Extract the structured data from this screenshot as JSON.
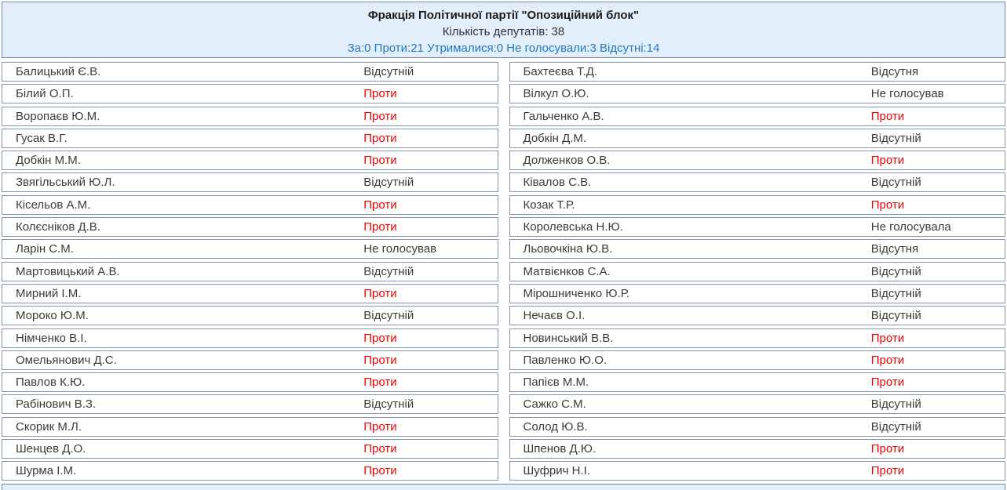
{
  "header": {
    "faction_title": "Фракція Політичної партії \"Опозиційний блок\"",
    "deputies_count": "Кількість депутатів: 38",
    "vote_summary": "За:0 Проти:21 Утрималися:0 Не голосували:3 Відсутні:14"
  },
  "colors": {
    "against": "#f00000",
    "summary_text": "#2079c3",
    "header_background": "#e3eefb",
    "box_border": "#8094ad"
  },
  "table": {
    "left": [
      {
        "name": "Балицький Є.В.",
        "vote": "Відсутній",
        "status": "absent"
      },
      {
        "name": "Білий О.П.",
        "vote": "Проти",
        "status": "against"
      },
      {
        "name": "Воропаєв Ю.М.",
        "vote": "Проти",
        "status": "against"
      },
      {
        "name": "Гусак В.Г.",
        "vote": "Проти",
        "status": "against"
      },
      {
        "name": "Добкін М.М.",
        "vote": "Проти",
        "status": "against"
      },
      {
        "name": "Звягільський Ю.Л.",
        "vote": "Відсутній",
        "status": "absent"
      },
      {
        "name": "Кісельов А.М.",
        "vote": "Проти",
        "status": "against"
      },
      {
        "name": "Колєсніков Д.В.",
        "vote": "Проти",
        "status": "against"
      },
      {
        "name": "Ларін С.М.",
        "vote": "Не голосував",
        "status": "not_voted"
      },
      {
        "name": "Мартовицький А.В.",
        "vote": "Відсутній",
        "status": "absent"
      },
      {
        "name": "Мирний І.М.",
        "vote": "Проти",
        "status": "against"
      },
      {
        "name": "Мороко Ю.М.",
        "vote": "Відсутній",
        "status": "absent"
      },
      {
        "name": "Німченко В.І.",
        "vote": "Проти",
        "status": "against"
      },
      {
        "name": "Омельянович Д.С.",
        "vote": "Проти",
        "status": "against"
      },
      {
        "name": "Павлов К.Ю.",
        "vote": "Проти",
        "status": "against"
      },
      {
        "name": "Рабінович В.З.",
        "vote": "Відсутній",
        "status": "absent"
      },
      {
        "name": "Скорик М.Л.",
        "vote": "Проти",
        "status": "against"
      },
      {
        "name": "Шенцев Д.О.",
        "vote": "Проти",
        "status": "against"
      },
      {
        "name": "Шурма І.М.",
        "vote": "Проти",
        "status": "against"
      }
    ],
    "right": [
      {
        "name": "Бахтеєва Т.Д.",
        "vote": "Відсутня",
        "status": "absent"
      },
      {
        "name": "Вілкул О.Ю.",
        "vote": "Не голосував",
        "status": "not_voted"
      },
      {
        "name": "Гальченко А.В.",
        "vote": "Проти",
        "status": "against"
      },
      {
        "name": "Добкін Д.М.",
        "vote": "Відсутній",
        "status": "absent"
      },
      {
        "name": "Долженков О.В.",
        "vote": "Проти",
        "status": "against"
      },
      {
        "name": "Ківалов С.В.",
        "vote": "Відсутній",
        "status": "absent"
      },
      {
        "name": "Козак Т.Р.",
        "vote": "Проти",
        "status": "against"
      },
      {
        "name": "Королевська Н.Ю.",
        "vote": "Не голосувала",
        "status": "not_voted"
      },
      {
        "name": "Льовочкіна Ю.В.",
        "vote": "Відсутня",
        "status": "absent"
      },
      {
        "name": "Матвієнков С.А.",
        "vote": "Відсутній",
        "status": "absent"
      },
      {
        "name": "Мірошниченко Ю.Р.",
        "vote": "Відсутній",
        "status": "absent"
      },
      {
        "name": "Нечаєв О.І.",
        "vote": "Відсутній",
        "status": "absent"
      },
      {
        "name": "Новинський В.В.",
        "vote": "Проти",
        "status": "against"
      },
      {
        "name": "Павленко Ю.О.",
        "vote": "Проти",
        "status": "against"
      },
      {
        "name": "Папієв М.М.",
        "vote": "Проти",
        "status": "against"
      },
      {
        "name": "Сажко С.М.",
        "vote": "Відсутній",
        "status": "absent"
      },
      {
        "name": "Солод Ю.В.",
        "vote": "Відсутній",
        "status": "absent"
      },
      {
        "name": "Шпенов Д.Ю.",
        "vote": "Проти",
        "status": "against"
      },
      {
        "name": "Шуфрич Н.І.",
        "vote": "Проти",
        "status": "against"
      }
    ]
  }
}
